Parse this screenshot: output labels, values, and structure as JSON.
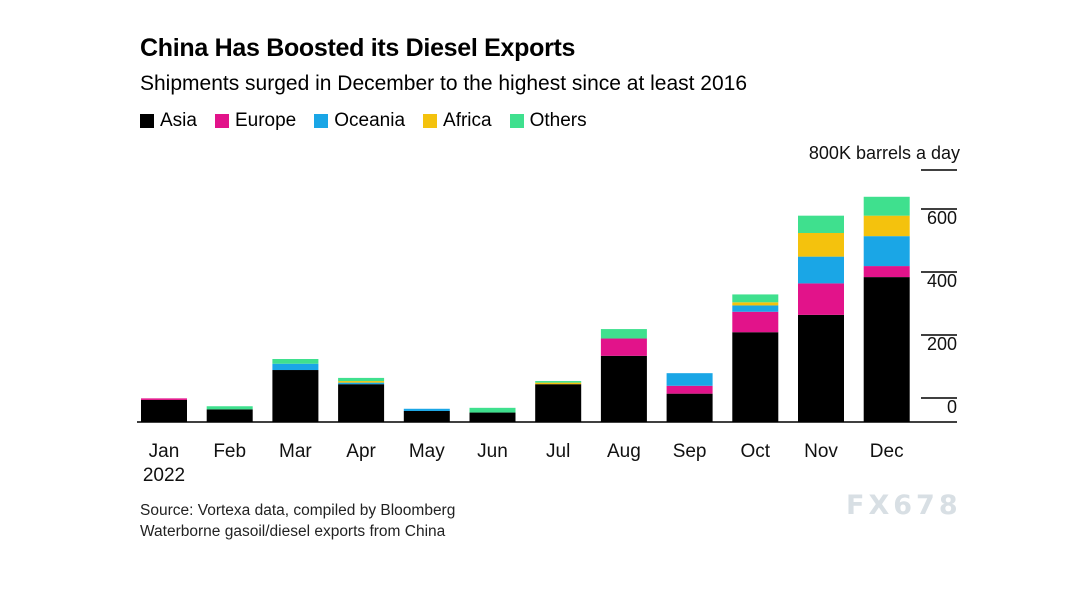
{
  "title": "China Has Boosted its Diesel Exports",
  "subtitle": "Shipments surged in December to the highest since at least 2016",
  "source_lines": [
    "Source: Vortexa data, compiled by Bloomberg",
    "Waterborne gasoil/diesel exports from China"
  ],
  "watermark": "FX678",
  "chart_data": {
    "type": "bar",
    "stacked": true,
    "title": "China Has Boosted its Diesel Exports",
    "subtitle": "Shipments surged in December to the highest since at least 2016",
    "unit_label": "800K barrels a day",
    "categories": [
      "Jan",
      "Feb",
      "Mar",
      "Apr",
      "May",
      "Jun",
      "Jul",
      "Aug",
      "Sep",
      "Oct",
      "Nov",
      "Dec"
    ],
    "category_sublabels": [
      "2022",
      "",
      "",
      "",
      "",
      "",
      "",
      "",
      "",
      "",
      "",
      ""
    ],
    "ylim": [
      0,
      800
    ],
    "yticks": [
      0,
      200,
      400,
      600
    ],
    "ytick_labels": [
      "0",
      "200",
      "400",
      "600"
    ],
    "grid": false,
    "legend_position": "top-left",
    "series": [
      {
        "name": "Asia",
        "color": "#000000",
        "values": [
          70,
          40,
          165,
          120,
          35,
          30,
          120,
          210,
          90,
          285,
          340,
          460
        ]
      },
      {
        "name": "Europe",
        "color": "#e2138a",
        "values": [
          5,
          0,
          0,
          0,
          0,
          0,
          0,
          55,
          25,
          65,
          100,
          35
        ]
      },
      {
        "name": "Oceania",
        "color": "#1aa6e6",
        "values": [
          0,
          0,
          20,
          5,
          7,
          0,
          0,
          0,
          40,
          20,
          85,
          95
        ]
      },
      {
        "name": "Africa",
        "color": "#f4c20d",
        "values": [
          0,
          0,
          0,
          5,
          0,
          0,
          5,
          0,
          0,
          10,
          75,
          65
        ]
      },
      {
        "name": "Others",
        "color": "#3fe08e",
        "values": [
          0,
          10,
          15,
          10,
          0,
          15,
          5,
          30,
          0,
          25,
          55,
          60
        ]
      }
    ]
  }
}
